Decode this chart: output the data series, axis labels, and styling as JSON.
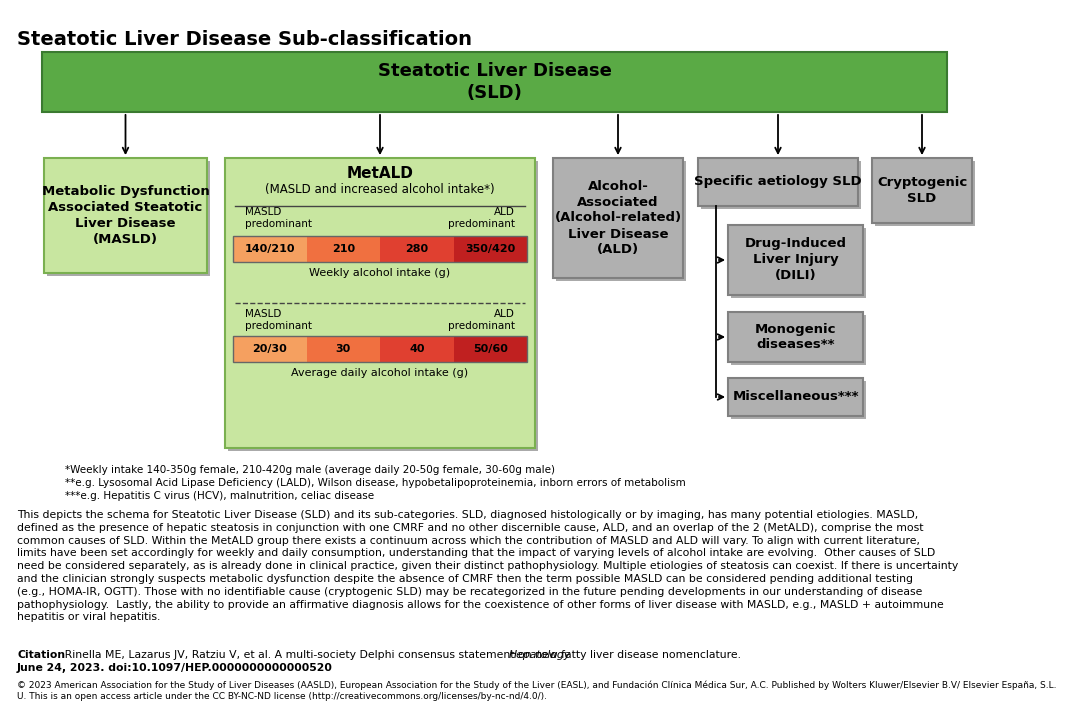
{
  "title": "Steatotic Liver Disease Sub-classification",
  "background_color": "#ffffff",
  "sld_box": {
    "text": "Steatotic Liver Disease\n(SLD)",
    "facecolor": "#5aaa45",
    "edgecolor": "#3a7a30",
    "textcolor": "#000000",
    "fontsize": 13,
    "bold": true
  },
  "masld_box": {
    "text": "Metabolic Dysfunction\nAssociated Steatotic\nLiver Disease\n(MASLD)",
    "facecolor": "#c8e6a0",
    "edgecolor": "#7ab050",
    "textcolor": "#000000",
    "fontsize": 9.5
  },
  "metald_box": {
    "title": "MetALD",
    "subtitle": "(MASLD and increased alcohol intake*)",
    "facecolor": "#c8e6a0",
    "edgecolor": "#7ab050",
    "textcolor": "#000000",
    "fontsize": 9.5,
    "weekly_row1_labels": [
      "140/210",
      "210",
      "280",
      "350/420"
    ],
    "weekly_label": "Weekly alcohol intake (g)",
    "daily_row1_labels": [
      "20/30",
      "30",
      "40",
      "50/60"
    ],
    "daily_label": "Average daily alcohol intake (g)",
    "masld_label": "MASLD\npredominant",
    "ald_label": "ALD\npredominant",
    "bar_colors": [
      "#f5a060",
      "#f07040",
      "#e04030",
      "#c02020"
    ]
  },
  "ald_box": {
    "text": "Alcohol-\nAssociated\n(Alcohol-related)\nLiver Disease\n(ALD)",
    "facecolor": "#b0b0b0",
    "edgecolor": "#808080",
    "textcolor": "#000000",
    "fontsize": 9.5
  },
  "specific_box": {
    "text": "Specific aetiology SLD",
    "facecolor": "#b0b0b0",
    "edgecolor": "#808080",
    "textcolor": "#000000",
    "fontsize": 9.5
  },
  "cryptogenic_box": {
    "text": "Cryptogenic\nSLD",
    "facecolor": "#b0b0b0",
    "edgecolor": "#808080",
    "textcolor": "#000000",
    "fontsize": 9.5
  },
  "dili_box": {
    "text": "Drug-Induced\nLiver Injury\n(DILI)",
    "facecolor": "#b0b0b0",
    "edgecolor": "#808080",
    "textcolor": "#000000",
    "fontsize": 9.5
  },
  "monogenic_box": {
    "text": "Monogenic\ndiseases**",
    "facecolor": "#b0b0b0",
    "edgecolor": "#808080",
    "textcolor": "#000000",
    "fontsize": 9.5
  },
  "misc_box": {
    "text": "Miscellaneous***",
    "facecolor": "#b0b0b0",
    "edgecolor": "#808080",
    "textcolor": "#000000",
    "fontsize": 9.5
  },
  "footnotes": [
    "*Weekly intake 140-350g female, 210-420g male (average daily 20-50g female, 30-60g male)",
    "**e.g. Lysosomal Acid Lipase Deficiency (LALD), Wilson disease, hypobetalipoproteinemia, inborn errors of metabolism",
    "***e.g. Hepatitis C virus (HCV), malnutrition, celiac disease"
  ],
  "body_text": "This depicts the schema for Steatotic Liver Disease (SLD) and its sub-categories. SLD, diagnosed histologically or by imaging, has many potential etiologies. MASLD,\ndefined as the presence of hepatic steatosis in conjunction with one CMRF and no other discernible cause, ALD, and an overlap of the 2 (MetALD), comprise the most\ncommon causes of SLD. Within the MetALD group there exists a continuum across which the contribution of MASLD and ALD will vary. To align with current literature,\nlimits have been set accordingly for weekly and daily consumption, understanding that the impact of varying levels of alcohol intake are evolving.  Other causes of SLD\nneed be considered separately, as is already done in clinical practice, given their distinct pathophysiology. Multiple etiologies of steatosis can coexist. If there is uncertainty\nand the clinician strongly suspects metabolic dysfunction despite the absence of CMRF then the term possible MASLD can be considered pending additional testing\n(e.g., HOMA-IR, OGTT). Those with no identifiable cause (cryptogenic SLD) may be recategorized in the future pending developments in our understanding of disease\npathophysiology.  Lastly, the ability to provide an affirmative diagnosis allows for the coexistence of other forms of liver disease with MASLD, e.g., MASLD + autoimmune\nhepatitis or viral hepatitis.",
  "citation_bold": "Citation",
  "citation_text": " : Rinella ME, Lazarus JV, Ratziu V, et al. A multi-society Delphi consensus statement on new fatty liver disease nomenclature. ",
  "citation_italic": "Hepatology",
  "citation_text2": ". Published online\nJune 24, 2023. doi:10.1097/HEP.0000000000000520",
  "copyright_text": "© 2023 American Association for the Study of Liver Diseases (AASLD), European Association for the Study of the Liver (EASL), and Fundación Clínica Médica Sur, A.C. Published by Wolters Kluwer/Elsevier B.V/ Elsevier España, S.L.\nU. This is an open access article under the CC BY-NC-ND license (http://creativecommons.org/licenses/by-nc-nd/4.0/)."
}
